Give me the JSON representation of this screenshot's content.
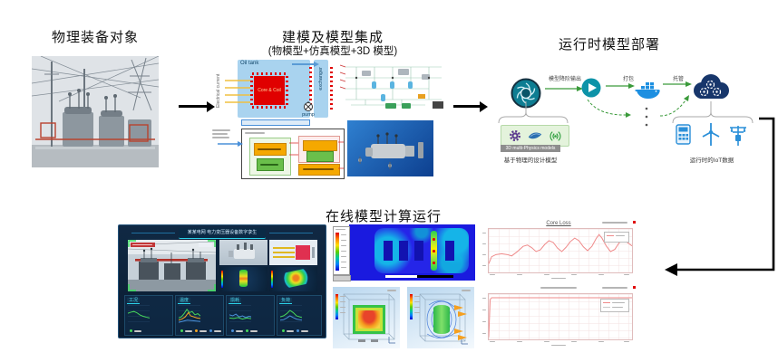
{
  "physical": {
    "title": "物理装备对象"
  },
  "modeling": {
    "title": "建模及模型集成",
    "subtitle": "(物模型+仿真模型+3D 模型)",
    "thermal": {
      "oil_tank": "Oil tank",
      "core": "Core & Coil",
      "exchanger": "exchanger",
      "pump": "pump",
      "electrical_current": "Electrical current"
    }
  },
  "deployment": {
    "title": "运行时模型部署",
    "steps": [
      "模型降阶输出",
      "打包",
      "托管"
    ],
    "models_bar": "3D multi-Physics models",
    "caption_left": "基于物理的设计模型",
    "caption_right": "运行时的IoT数据"
  },
  "online": {
    "title": "在线模型计算运行",
    "dashboard": {
      "title": "某某电网 电力变压器设备数字孪生"
    }
  },
  "colors": {
    "accent_teal": "#0d7d92",
    "docker_blue": "#1d8fe1",
    "cloud_navy": "#17366b",
    "flow_arrow_green": "#3a9a3a",
    "dashboard_bg": "#0d2238",
    "cfd_blue": "#1a1adf",
    "hot_red": "#e00000"
  },
  "chart_data": [
    {
      "type": "line",
      "title": "Core Loss",
      "legend_position": "top-right",
      "axis_note": "tick labels illegible at source resolution, values normalized 0-100",
      "series": [
        {
          "name": "Core Loss",
          "color": "#ef8a8a",
          "width": 1,
          "points_pct": [
            [
              0,
              80
            ],
            [
              2,
              64
            ],
            [
              5,
              59
            ],
            [
              9,
              57
            ],
            [
              13,
              59
            ],
            [
              16,
              62
            ],
            [
              20,
              52
            ],
            [
              24,
              40
            ],
            [
              27,
              37
            ],
            [
              30,
              43
            ],
            [
              33,
              52
            ],
            [
              36,
              48
            ],
            [
              39,
              36
            ],
            [
              42,
              27
            ],
            [
              45,
              31
            ],
            [
              48,
              44
            ],
            [
              51,
              52
            ],
            [
              54,
              42
            ],
            [
              57,
              29
            ],
            [
              60,
              21
            ],
            [
              63,
              27
            ],
            [
              66,
              41
            ],
            [
              69,
              50
            ],
            [
              72,
              40
            ],
            [
              75,
              22
            ],
            [
              77,
              13
            ],
            [
              79,
              21
            ],
            [
              82,
              39
            ],
            [
              85,
              52
            ],
            [
              88,
              47
            ],
            [
              91,
              32
            ],
            [
              94,
              25
            ],
            [
              96,
              29
            ],
            [
              100,
              39
            ]
          ]
        }
      ]
    },
    {
      "type": "line",
      "title": "",
      "legend_position": "top-right",
      "axis_note": "constant value curve, labels illegible",
      "series": [
        {
          "name": "",
          "color": "#ef8a8a",
          "width": 1,
          "points_pct": [
            [
              0,
              95
            ],
            [
              1,
              12
            ],
            [
              2,
              8
            ],
            [
              100,
              8
            ]
          ]
        }
      ]
    },
    {
      "type": "line",
      "title": "工况",
      "series": [
        {
          "name": "",
          "color": "#46d85a",
          "width": 1,
          "points_pct": [
            [
              0,
              38
            ],
            [
              14,
              33
            ],
            [
              28,
              30
            ],
            [
              42,
              36
            ],
            [
              56,
              46
            ],
            [
              70,
              52
            ],
            [
              84,
              56
            ],
            [
              100,
              60
            ]
          ]
        }
      ]
    },
    {
      "type": "line",
      "title": "温度",
      "series": [
        {
          "name": "",
          "color": "#46d85a",
          "width": 1,
          "points_pct": [
            [
              0,
              60
            ],
            [
              12,
              55
            ],
            [
              25,
              40
            ],
            [
              38,
              20
            ],
            [
              50,
              35
            ],
            [
              62,
              30
            ],
            [
              75,
              45
            ],
            [
              88,
              40
            ],
            [
              100,
              50
            ]
          ]
        },
        {
          "name": "",
          "color": "#f5a623",
          "width": 1,
          "points_pct": [
            [
              0,
              70
            ],
            [
              15,
              65
            ],
            [
              30,
              55
            ],
            [
              45,
              35
            ],
            [
              55,
              50
            ],
            [
              70,
              55
            ],
            [
              85,
              60
            ],
            [
              100,
              62
            ]
          ]
        },
        {
          "name": "",
          "color": "#4a90d9",
          "width": 1,
          "points_pct": [
            [
              0,
              80
            ],
            [
              20,
              75
            ],
            [
              40,
              70
            ],
            [
              60,
              72
            ],
            [
              80,
              74
            ],
            [
              100,
              76
            ]
          ]
        }
      ]
    },
    {
      "type": "line",
      "title": "损耗",
      "series": [
        {
          "name": "",
          "color": "#4a90d9",
          "width": 1,
          "points_pct": [
            [
              0,
              45
            ],
            [
              15,
              50
            ],
            [
              30,
              42
            ],
            [
              45,
              55
            ],
            [
              60,
              50
            ],
            [
              75,
              58
            ],
            [
              90,
              52
            ],
            [
              100,
              55
            ]
          ]
        },
        {
          "name": "",
          "color": "#46d85a",
          "width": 1,
          "points_pct": [
            [
              0,
              60
            ],
            [
              20,
              62
            ],
            [
              40,
              58
            ],
            [
              60,
              65
            ],
            [
              80,
              60
            ],
            [
              100,
              63
            ]
          ]
        }
      ]
    },
    {
      "type": "line",
      "title": "负荷",
      "series": [
        {
          "name": "",
          "color": "#46d85a",
          "width": 1,
          "points_pct": [
            [
              0,
              55
            ],
            [
              15,
              50
            ],
            [
              30,
              40
            ],
            [
              45,
              25
            ],
            [
              60,
              35
            ],
            [
              75,
              50
            ],
            [
              90,
              55
            ],
            [
              100,
              58
            ]
          ]
        },
        {
          "name": "",
          "color": "#4a90d9",
          "width": 1,
          "points_pct": [
            [
              0,
              70
            ],
            [
              15,
              68
            ],
            [
              30,
              60
            ],
            [
              45,
              50
            ],
            [
              60,
              58
            ],
            [
              75,
              65
            ],
            [
              90,
              68
            ],
            [
              100,
              70
            ]
          ]
        }
      ]
    }
  ]
}
